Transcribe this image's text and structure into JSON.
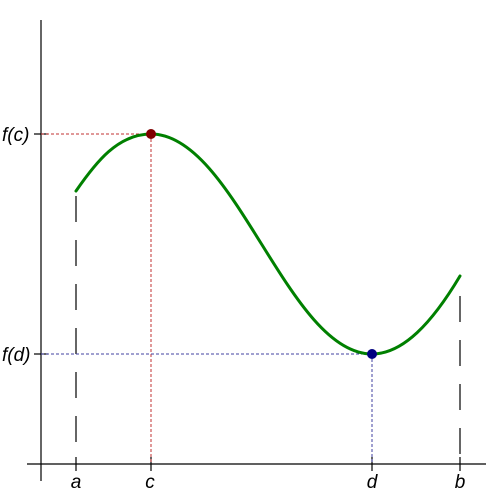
{
  "diagram": {
    "x_labels": {
      "a": "a",
      "c": "c",
      "d": "d",
      "b": "b"
    },
    "y_labels": {
      "max": "f(c)",
      "min": "f(d)"
    },
    "colors": {
      "curve": "#008000",
      "max_point": "#800000",
      "max_guide": "#c03030",
      "min_point": "#000080",
      "min_guide": "#4040a0",
      "axis": "#000000"
    }
  }
}
